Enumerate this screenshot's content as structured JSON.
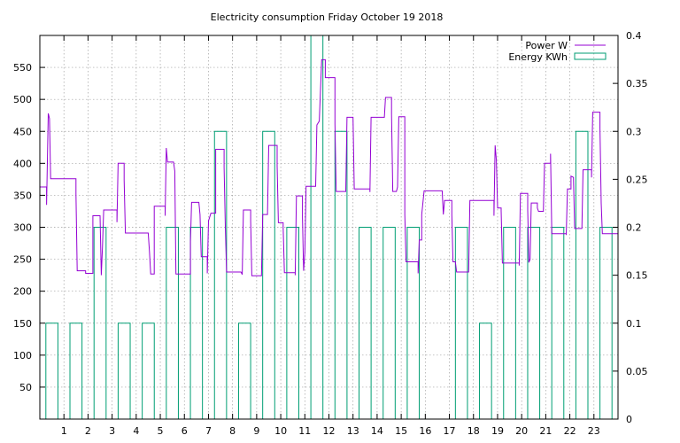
{
  "chart_data": {
    "type": "line",
    "title": "Electricity consumption Friday October 19 2018",
    "xlabel": "",
    "ylabel": "",
    "x_ticks": [
      "1",
      "2",
      "3",
      "4",
      "5",
      "6",
      "7",
      "8",
      "9",
      "10",
      "11",
      "12",
      "13",
      "14",
      "15",
      "16",
      "17",
      "18",
      "19",
      "20",
      "21",
      "22",
      "23"
    ],
    "xlim": [
      0,
      24
    ],
    "y_left_ticks": [
      "50",
      "100",
      "150",
      "200",
      "250",
      "300",
      "350",
      "400",
      "450",
      "500",
      "550"
    ],
    "ylim_left": [
      0,
      600
    ],
    "y_right_ticks": [
      "0",
      "0.05",
      "0.1",
      "0.15",
      "0.2",
      "0.25",
      "0.3",
      "0.35",
      "0.4"
    ],
    "ylim_right": [
      0,
      0.4
    ],
    "grid": true,
    "legend_position": "top-right",
    "series": [
      {
        "name": "Power W",
        "axis": "left",
        "color": "#9400d3",
        "style": "steps",
        "points": [
          [
            0.0,
            363
          ],
          [
            0.28,
            363
          ],
          [
            0.28,
            335
          ],
          [
            0.35,
            478
          ],
          [
            0.4,
            470
          ],
          [
            0.45,
            376
          ],
          [
            1.0,
            376
          ],
          [
            1.5,
            376
          ],
          [
            1.5,
            352
          ],
          [
            1.55,
            232
          ],
          [
            1.9,
            232
          ],
          [
            1.9,
            228
          ],
          [
            2.2,
            228
          ],
          [
            2.2,
            318
          ],
          [
            2.5,
            318
          ],
          [
            2.55,
            225
          ],
          [
            2.6,
            268
          ],
          [
            2.65,
            327
          ],
          [
            3.2,
            327
          ],
          [
            3.2,
            308
          ],
          [
            3.25,
            400
          ],
          [
            3.5,
            400
          ],
          [
            3.5,
            374
          ],
          [
            3.55,
            291
          ],
          [
            4.5,
            291
          ],
          [
            4.55,
            262
          ],
          [
            4.6,
            227
          ],
          [
            4.75,
            227
          ],
          [
            4.75,
            333
          ],
          [
            5.2,
            333
          ],
          [
            5.2,
            318
          ],
          [
            5.25,
            424
          ],
          [
            5.3,
            402
          ],
          [
            5.55,
            402
          ],
          [
            5.6,
            388
          ],
          [
            5.65,
            227
          ],
          [
            6.25,
            227
          ],
          [
            6.25,
            278
          ],
          [
            6.3,
            339
          ],
          [
            6.6,
            339
          ],
          [
            6.65,
            320
          ],
          [
            6.7,
            254
          ],
          [
            6.95,
            254
          ],
          [
            6.95,
            228
          ],
          [
            7.0,
            310
          ],
          [
            7.1,
            322
          ],
          [
            7.3,
            322
          ],
          [
            7.3,
            422
          ],
          [
            7.65,
            422
          ],
          [
            7.65,
            394
          ],
          [
            7.7,
            300
          ],
          [
            7.75,
            230
          ],
          [
            8.35,
            230
          ],
          [
            8.4,
            226
          ],
          [
            8.45,
            327
          ],
          [
            8.75,
            327
          ],
          [
            8.75,
            310
          ],
          [
            8.8,
            224
          ],
          [
            9.2,
            224
          ],
          [
            9.25,
            320
          ],
          [
            9.45,
            320
          ],
          [
            9.5,
            428
          ],
          [
            9.85,
            428
          ],
          [
            9.85,
            396
          ],
          [
            9.9,
            307
          ],
          [
            10.1,
            307
          ],
          [
            10.1,
            300
          ],
          [
            10.15,
            229
          ],
          [
            10.6,
            229
          ],
          [
            10.6,
            225
          ],
          [
            10.65,
            349
          ],
          [
            10.9,
            349
          ],
          [
            10.9,
            316
          ],
          [
            10.95,
            232
          ],
          [
            11.0,
            260
          ],
          [
            11.05,
            364
          ],
          [
            11.45,
            364
          ],
          [
            11.5,
            460
          ],
          [
            11.6,
            466
          ],
          [
            11.7,
            562
          ],
          [
            11.85,
            562
          ],
          [
            11.85,
            534
          ],
          [
            12.25,
            534
          ],
          [
            12.25,
            462
          ],
          [
            12.3,
            356
          ],
          [
            12.7,
            356
          ],
          [
            12.75,
            472
          ],
          [
            13.0,
            472
          ],
          [
            13.05,
            360
          ],
          [
            13.7,
            360
          ],
          [
            13.7,
            355
          ],
          [
            13.75,
            472
          ],
          [
            14.3,
            472
          ],
          [
            14.35,
            503
          ],
          [
            14.6,
            503
          ],
          [
            14.6,
            477
          ],
          [
            14.65,
            356
          ],
          [
            14.8,
            356
          ],
          [
            14.85,
            363
          ],
          [
            14.9,
            473
          ],
          [
            15.15,
            473
          ],
          [
            15.15,
            320
          ],
          [
            15.2,
            246
          ],
          [
            15.7,
            246
          ],
          [
            15.7,
            228
          ],
          [
            15.75,
            280
          ],
          [
            15.85,
            280
          ],
          [
            15.85,
            320
          ],
          [
            15.95,
            357
          ],
          [
            16.7,
            357
          ],
          [
            16.75,
            320
          ],
          [
            16.8,
            342
          ],
          [
            17.1,
            342
          ],
          [
            17.1,
            320
          ],
          [
            17.15,
            246
          ],
          [
            17.25,
            246
          ],
          [
            17.3,
            230
          ],
          [
            17.8,
            230
          ],
          [
            17.85,
            342
          ],
          [
            18.85,
            342
          ],
          [
            18.85,
            318
          ],
          [
            18.9,
            428
          ],
          [
            18.95,
            405
          ],
          [
            19.0,
            330
          ],
          [
            19.15,
            330
          ],
          [
            19.15,
            326
          ],
          [
            19.2,
            244
          ],
          [
            19.9,
            244
          ],
          [
            19.9,
            240
          ],
          [
            19.95,
            353
          ],
          [
            20.25,
            353
          ],
          [
            20.25,
            327
          ],
          [
            20.3,
            245
          ],
          [
            20.35,
            250
          ],
          [
            20.4,
            338
          ],
          [
            20.65,
            338
          ],
          [
            20.65,
            330
          ],
          [
            20.7,
            325
          ],
          [
            20.9,
            325
          ],
          [
            20.95,
            400
          ],
          [
            21.2,
            400
          ],
          [
            21.2,
            415
          ],
          [
            21.25,
            290
          ],
          [
            21.85,
            290
          ],
          [
            21.85,
            288
          ],
          [
            21.9,
            360
          ],
          [
            22.05,
            360
          ],
          [
            22.05,
            380
          ],
          [
            22.15,
            378
          ],
          [
            22.2,
            298
          ],
          [
            22.5,
            298
          ],
          [
            22.55,
            390
          ],
          [
            22.9,
            390
          ],
          [
            22.9,
            378
          ],
          [
            22.95,
            480
          ],
          [
            23.25,
            480
          ],
          [
            23.25,
            455
          ],
          [
            23.3,
            338
          ],
          [
            23.35,
            290
          ],
          [
            24.0,
            290
          ]
        ]
      },
      {
        "name": "Energy KWh",
        "axis": "right",
        "color": "#009e73",
        "style": "bars",
        "bars": [
          [
            0,
            0.1
          ],
          [
            1,
            0.1
          ],
          [
            2,
            0.2
          ],
          [
            3,
            0.1
          ],
          [
            4,
            0.1
          ],
          [
            5,
            0.2
          ],
          [
            6,
            0.2
          ],
          [
            7,
            0.3
          ],
          [
            8,
            0.1
          ],
          [
            9,
            0.3
          ],
          [
            10,
            0.2
          ],
          [
            11,
            0.4
          ],
          [
            12,
            0.3
          ],
          [
            13,
            0.2
          ],
          [
            14,
            0.2
          ],
          [
            15,
            0.2
          ],
          [
            16,
            0
          ],
          [
            17,
            0.2
          ],
          [
            18,
            0.1
          ],
          [
            19,
            0.2
          ],
          [
            20,
            0.2
          ],
          [
            21,
            0.2
          ],
          [
            22,
            0.3
          ],
          [
            23,
            0.2
          ]
        ]
      }
    ]
  }
}
